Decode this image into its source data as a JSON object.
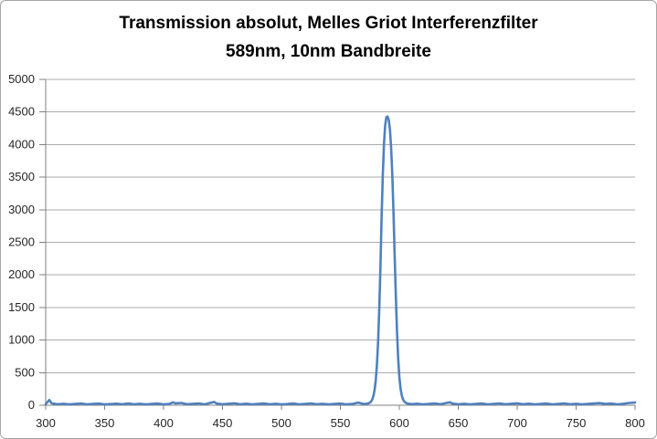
{
  "window": {
    "background": "#ffffff",
    "border_color": "#a6a6a6"
  },
  "title": {
    "line1": "Transmission absolut, Melles Griot Interferenzfilter",
    "line2": "589nm, 10nm Bandbreite"
  },
  "chart_data": {
    "type": "line",
    "title": "Transmission absolut, Melles Griot Interferenzfilter 589nm, 10nm Bandbreite",
    "xlabel": "",
    "ylabel": "",
    "xlim": [
      300,
      800
    ],
    "ylim": [
      0,
      5000
    ],
    "x_ticks": [
      300,
      350,
      400,
      450,
      500,
      550,
      600,
      650,
      700,
      750,
      800
    ],
    "y_ticks": [
      0,
      500,
      1000,
      1500,
      2000,
      2500,
      3000,
      3500,
      4000,
      4500,
      5000
    ],
    "grid": "horizontal",
    "legend": "none",
    "colors": {
      "line": "#4F81BD",
      "gridline": "#ABABAB",
      "axis": "#808080",
      "tick_label": "#262626"
    },
    "series": [
      {
        "name": "Transmission",
        "color": "#4F81BD",
        "x": [
          300,
          303,
          305,
          310,
          315,
          320,
          325,
          330,
          335,
          340,
          345,
          350,
          355,
          360,
          365,
          370,
          375,
          380,
          385,
          390,
          395,
          400,
          405,
          408,
          410,
          415,
          420,
          425,
          430,
          435,
          440,
          443,
          445,
          450,
          455,
          460,
          465,
          470,
          475,
          480,
          485,
          490,
          495,
          500,
          505,
          510,
          515,
          520,
          525,
          530,
          535,
          540,
          545,
          550,
          555,
          560,
          565,
          570,
          572,
          574,
          575,
          576,
          577,
          578,
          579,
          580,
          581,
          582,
          583,
          584,
          585,
          586,
          587,
          588,
          589,
          590,
          591,
          592,
          593,
          594,
          595,
          596,
          597,
          598,
          599,
          600,
          601,
          602,
          603,
          604,
          605,
          606,
          607,
          608,
          610,
          612,
          615,
          620,
          625,
          630,
          635,
          640,
          643,
          645,
          650,
          655,
          660,
          665,
          670,
          675,
          680,
          685,
          690,
          695,
          700,
          705,
          710,
          715,
          720,
          725,
          730,
          735,
          740,
          745,
          750,
          755,
          760,
          765,
          770,
          775,
          780,
          785,
          790,
          795,
          800
        ],
        "y": [
          18,
          80,
          30,
          15,
          22,
          12,
          20,
          28,
          14,
          19,
          25,
          12,
          18,
          24,
          15,
          28,
          16,
          22,
          12,
          19,
          26,
          14,
          20,
          45,
          30,
          35,
          16,
          22,
          28,
          14,
          38,
          50,
          25,
          15,
          22,
          30,
          16,
          24,
          12,
          20,
          27,
          15,
          22,
          12,
          18,
          26,
          14,
          21,
          28,
          15,
          22,
          12,
          19,
          25,
          14,
          20,
          40,
          18,
          22,
          30,
          40,
          55,
          85,
          140,
          230,
          380,
          620,
          980,
          1500,
          2150,
          2880,
          3520,
          4000,
          4290,
          4420,
          4430,
          4380,
          4240,
          3960,
          3540,
          2980,
          2350,
          1720,
          1160,
          730,
          440,
          260,
          155,
          95,
          62,
          44,
          33,
          27,
          23,
          20,
          18,
          24,
          14,
          20,
          28,
          15,
          35,
          45,
          25,
          16,
          22,
          12,
          19,
          26,
          14,
          21,
          28,
          15,
          22,
          30,
          16,
          24,
          12,
          20,
          27,
          14,
          21,
          28,
          15,
          22,
          12,
          19,
          26,
          32,
          20,
          26,
          14,
          22,
          35,
          40
        ]
      }
    ]
  }
}
